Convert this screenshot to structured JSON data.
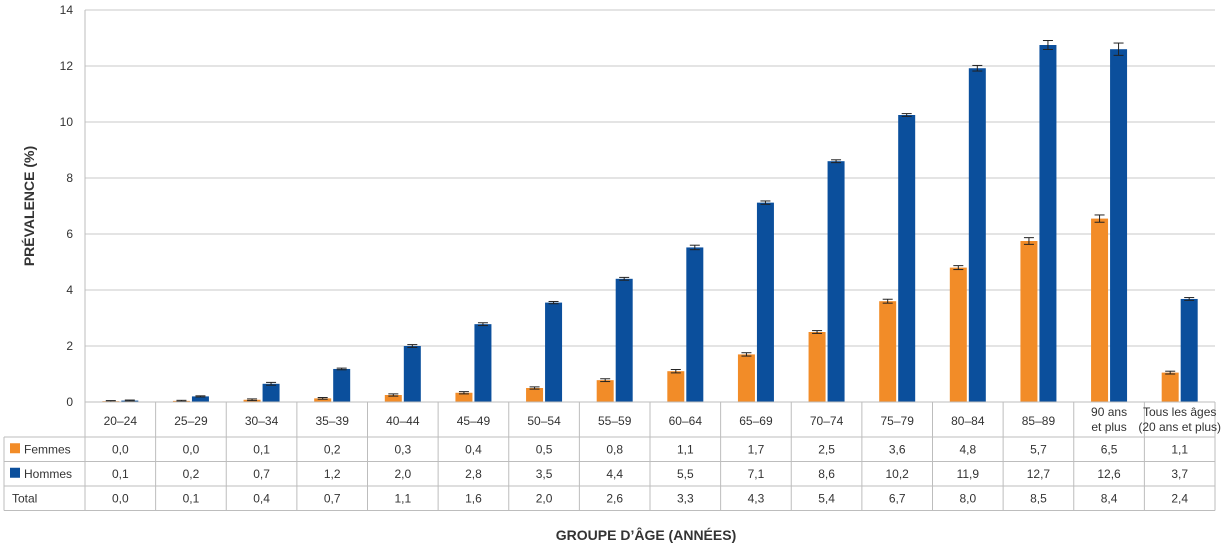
{
  "chart_data": {
    "type": "bar",
    "ylabel": "PRÉVALENCE (%)",
    "xlabel": "GROUPE D’ÂGE (ANNÉES)",
    "ylim": [
      0,
      14
    ],
    "yticks": [
      0,
      2,
      4,
      6,
      8,
      10,
      12,
      14
    ],
    "grid": true,
    "categories": [
      [
        "20–24"
      ],
      [
        "25–29"
      ],
      [
        "30–34"
      ],
      [
        "35–39"
      ],
      [
        "40–44"
      ],
      [
        "45–49"
      ],
      [
        "50–54"
      ],
      [
        "55–59"
      ],
      [
        "60–64"
      ],
      [
        "65–69"
      ],
      [
        "70–74"
      ],
      [
        "75–79"
      ],
      [
        "80–84"
      ],
      [
        "85–89"
      ],
      [
        "90 ans",
        "et plus"
      ],
      [
        "Tous les âges",
        "(20 ans et plus)"
      ]
    ],
    "series": [
      {
        "name": "Femmes",
        "color": "#F28C28",
        "values": [
          0.0,
          0.0,
          0.1,
          0.2,
          0.3,
          0.4,
          0.5,
          0.8,
          1.1,
          1.7,
          2.5,
          3.6,
          4.8,
          5.7,
          6.5,
          1.1
        ],
        "labels": [
          "0,0",
          "0,0",
          "0,1",
          "0,2",
          "0,3",
          "0,4",
          "0,5",
          "0,8",
          "1,1",
          "1,7",
          "2,5",
          "3,6",
          "4,8",
          "5,7",
          "6,5",
          "1,1"
        ],
        "bar_values": [
          0.03,
          0.04,
          0.08,
          0.13,
          0.25,
          0.33,
          0.5,
          0.78,
          1.1,
          1.7,
          2.5,
          3.6,
          4.8,
          5.75,
          6.55,
          1.05
        ],
        "errors": [
          0.02,
          0.02,
          0.03,
          0.03,
          0.04,
          0.04,
          0.04,
          0.05,
          0.06,
          0.06,
          0.05,
          0.07,
          0.07,
          0.12,
          0.13,
          0.05
        ]
      },
      {
        "name": "Hommes",
        "color": "#0B4F9C",
        "values": [
          0.1,
          0.2,
          0.7,
          1.2,
          2.0,
          2.8,
          3.5,
          4.4,
          5.5,
          7.1,
          8.6,
          10.2,
          11.9,
          12.7,
          12.6,
          3.7
        ],
        "labels": [
          "0,1",
          "0,2",
          "0,7",
          "1,2",
          "2,0",
          "2,8",
          "3,5",
          "4,4",
          "5,5",
          "7,1",
          "8,6",
          "10,2",
          "11,9",
          "12,7",
          "12,6",
          "3,7"
        ],
        "bar_values": [
          0.05,
          0.2,
          0.65,
          1.18,
          2.0,
          2.78,
          3.55,
          4.4,
          5.52,
          7.12,
          8.6,
          10.25,
          11.92,
          12.75,
          12.6,
          3.68
        ],
        "errors": [
          0.02,
          0.02,
          0.05,
          0.03,
          0.05,
          0.05,
          0.04,
          0.05,
          0.08,
          0.06,
          0.05,
          0.05,
          0.1,
          0.16,
          0.22,
          0.05
        ]
      }
    ],
    "table": {
      "rows": [
        {
          "name": "Femmes",
          "marker": "#F28C28",
          "values": [
            "0,0",
            "0,0",
            "0,1",
            "0,2",
            "0,3",
            "0,4",
            "0,5",
            "0,8",
            "1,1",
            "1,7",
            "2,5",
            "3,6",
            "4,8",
            "5,7",
            "6,5",
            "1,1"
          ]
        },
        {
          "name": "Hommes",
          "marker": "#0B4F9C",
          "values": [
            "0,1",
            "0,2",
            "0,7",
            "1,2",
            "2,0",
            "2,8",
            "3,5",
            "4,4",
            "5,5",
            "7,1",
            "8,6",
            "10,2",
            "11,9",
            "12,7",
            "12,6",
            "3,7"
          ]
        },
        {
          "name": "Total",
          "marker": "",
          "values": [
            "0,0",
            "0,1",
            "0,4",
            "0,7",
            "1,1",
            "1,6",
            "2,0",
            "2,6",
            "3,3",
            "4,3",
            "5,4",
            "6,7",
            "8,0",
            "8,5",
            "8,4",
            "2,4"
          ]
        }
      ]
    }
  }
}
